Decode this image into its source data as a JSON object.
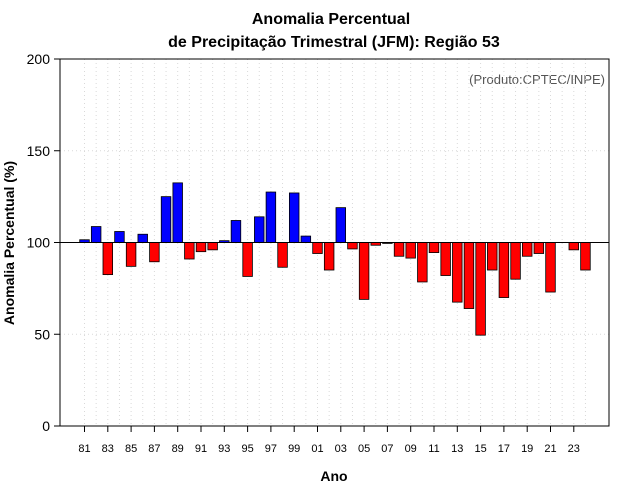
{
  "chart_data": {
    "type": "bar",
    "title": "Anomalia Percentual",
    "subtitle": "de Precipitação Trimestral (JFM): Região 53",
    "xlabel": "Ano",
    "ylabel": "Anomalia Percentual (%)",
    "credit": "(Produto:CPTEC/INPE)",
    "baseline": 100,
    "ylim": [
      0,
      200
    ],
    "yticks": [
      0,
      50,
      100,
      150,
      200
    ],
    "xtick_labels": [
      "81",
      "83",
      "85",
      "87",
      "89",
      "91",
      "93",
      "95",
      "97",
      "99",
      "01",
      "03",
      "05",
      "07",
      "09",
      "11",
      "13",
      "15",
      "17",
      "19",
      "21",
      "23"
    ],
    "colors": {
      "above": "#0000ff",
      "below": "#ff0000",
      "baseline": "#000000",
      "grid": "#d9d9d9"
    },
    "categories": [
      1981,
      1982,
      1983,
      1984,
      1985,
      1986,
      1987,
      1988,
      1989,
      1990,
      1991,
      1992,
      1993,
      1994,
      1995,
      1996,
      1997,
      1998,
      1999,
      2000,
      2001,
      2002,
      2003,
      2004,
      2005,
      2006,
      2007,
      2008,
      2009,
      2010,
      2011,
      2012,
      2013,
      2014,
      2015,
      2016,
      2017,
      2018,
      2019,
      2020,
      2021,
      2022,
      2023,
      2024
    ],
    "values": [
      101.5,
      108.7,
      82.5,
      106,
      87,
      104.5,
      89.5,
      125,
      132.5,
      91,
      95,
      96,
      101,
      112,
      81.5,
      114,
      127.5,
      86.5,
      127,
      103.5,
      94,
      85,
      119,
      96.5,
      69,
      98.5,
      99.5,
      92.5,
      91.5,
      78.5,
      94.5,
      82,
      67.5,
      64,
      49.5,
      85,
      70,
      80,
      92.5,
      94,
      73,
      null,
      96,
      85
    ]
  }
}
